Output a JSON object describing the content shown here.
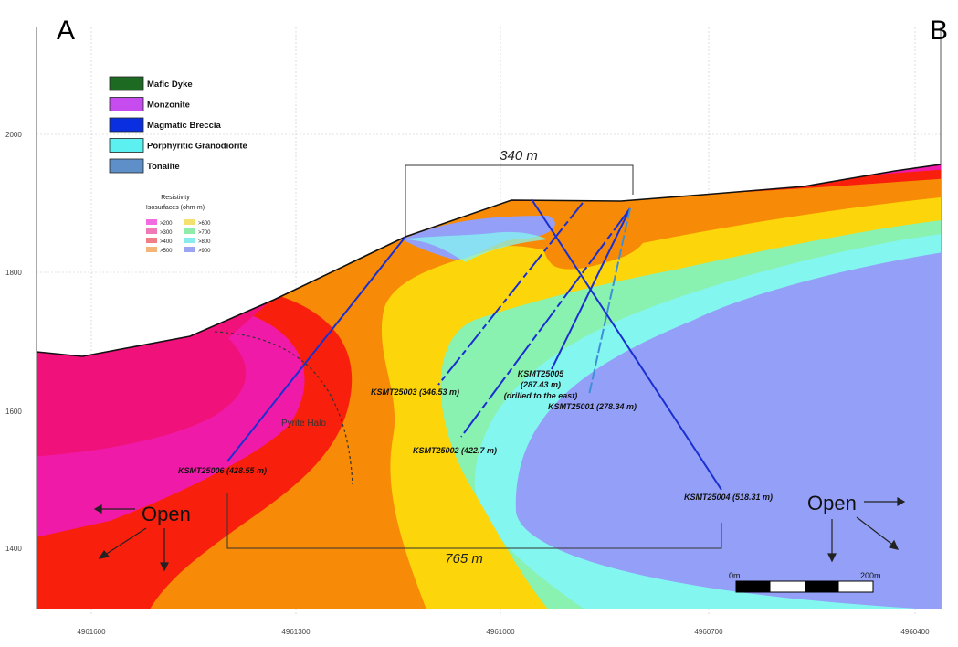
{
  "section_ends": {
    "left": "A",
    "right": "B"
  },
  "elevation_ticks": [
    "2000",
    "1800",
    "1600",
    "1400"
  ],
  "easting_ticks": [
    "4961600",
    "4961300",
    "4961000",
    "4960700",
    "4960400"
  ],
  "lithology_legend": [
    {
      "label": "Mafic Dyke",
      "color": "#1d6b22"
    },
    {
      "label": "Monzonite",
      "color": "#c74cf0"
    },
    {
      "label": "Magmatic Breccia",
      "color": "#0a2fe0"
    },
    {
      "label": "Porphyritic Granodiorite",
      "color": "#5cf0f0"
    },
    {
      "label": "Tonalite",
      "color": "#5f8fc8"
    }
  ],
  "resistivity_legend": {
    "title_line1": "Resistivity",
    "title_line2": "Isosurfaces (ohm-m)",
    "items": [
      {
        "label": ">200",
        "color": "#f06ce0"
      },
      {
        "label": ">300",
        "color": "#f07ab8"
      },
      {
        "label": ">400",
        "color": "#f07e86"
      },
      {
        "label": ">500",
        "color": "#f5b478"
      },
      {
        "label": ">600",
        "color": "#f4e070"
      },
      {
        "label": ">700",
        "color": "#90eca8"
      },
      {
        "label": ">800",
        "color": "#88ecec"
      },
      {
        "label": ">900",
        "color": "#9aa6f4"
      }
    ]
  },
  "drillholes": {
    "KSMT25001": "KSMT25001 (278.34 m)",
    "KSMT25002": "KSMT25002 (422.7 m)",
    "KSMT25003": "KSMT25003 (346.53 m)",
    "KSMT25004": "KSMT25004 (518.31 m)",
    "KSMT25005_line1": "KSMT25005",
    "KSMT25005_line2": "(287.43 m)",
    "KSMT25005_line3": "(drilled to the east)",
    "KSMT25006": "KSMT25006 (428.55 m)"
  },
  "dimensions": {
    "top_width": "340 m",
    "bottom_width": "765 m"
  },
  "annotations": {
    "pyrite_halo": "Pyrite Halo",
    "open_left": "Open",
    "open_right": "Open"
  },
  "scale_bar": {
    "start": "0m",
    "end": "200m"
  },
  "colors": {
    "pink": "#f0127a",
    "magenta": "#f01aa8",
    "red": "#f8200c",
    "orange": "#f78a06",
    "yellow": "#fcd60a",
    "green": "#8af2b0",
    "cyan": "#84f6f0",
    "blue": "#94a0f8",
    "hole": "#1a2fd0"
  }
}
